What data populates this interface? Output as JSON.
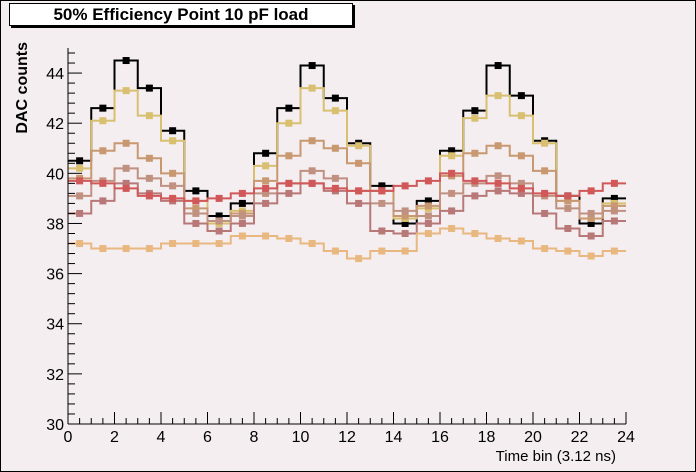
{
  "chart_data": {
    "type": "line",
    "title": "50% Efficiency Point 10 pF load",
    "xlabel": "Time bin (3.12 ns)",
    "ylabel": "DAC counts",
    "xlim": [
      0,
      24
    ],
    "ylim": [
      30,
      45
    ],
    "x_ticks": [
      0,
      2,
      4,
      6,
      8,
      10,
      12,
      14,
      16,
      18,
      20,
      22,
      24
    ],
    "y_ticks": [
      30,
      32,
      34,
      36,
      38,
      40,
      42,
      44
    ],
    "grid": false,
    "legend": "none",
    "x": [
      0.5,
      1.5,
      2.5,
      3.5,
      4.5,
      5.5,
      6.5,
      7.5,
      8.5,
      9.5,
      10.5,
      11.5,
      12.5,
      13.5,
      14.5,
      15.5,
      16.5,
      17.5,
      18.5,
      19.5,
      20.5,
      21.5,
      22.5,
      23.5
    ],
    "series": [
      {
        "color": "#000000",
        "values": [
          40.5,
          42.6,
          44.5,
          43.4,
          41.7,
          39.3,
          38.3,
          38.8,
          40.8,
          42.6,
          44.3,
          43.0,
          41.2,
          39.5,
          38.0,
          38.9,
          40.9,
          42.5,
          44.3,
          43.1,
          41.3,
          39.1,
          38.0,
          39.0
        ]
      },
      {
        "color": "#d8c070",
        "values": [
          40.2,
          42.1,
          43.3,
          42.3,
          41.3,
          38.9,
          38.0,
          38.5,
          40.3,
          42.0,
          43.4,
          42.5,
          41.1,
          39.3,
          38.2,
          38.6,
          40.7,
          42.2,
          43.1,
          42.3,
          41.2,
          38.9,
          38.2,
          38.8
        ]
      },
      {
        "color": "#c89870",
        "values": [
          39.8,
          40.9,
          41.2,
          40.6,
          40.0,
          38.6,
          38.1,
          38.4,
          39.7,
          40.7,
          41.3,
          41.0,
          40.4,
          39.3,
          38.3,
          38.7,
          39.9,
          40.8,
          41.1,
          40.7,
          40.1,
          38.9,
          38.2,
          38.7
        ]
      },
      {
        "color": "#c09080",
        "values": [
          39.1,
          39.7,
          40.2,
          39.8,
          39.5,
          38.4,
          38.1,
          38.3,
          39.2,
          39.6,
          40.1,
          39.8,
          39.3,
          38.8,
          38.5,
          38.3,
          39.2,
          39.6,
          39.9,
          39.6,
          39.1,
          38.6,
          38.4,
          38.5
        ]
      },
      {
        "color": "#b87878",
        "values": [
          38.4,
          38.9,
          39.6,
          39.2,
          38.9,
          38.0,
          37.7,
          38.0,
          38.8,
          39.2,
          39.6,
          39.3,
          38.8,
          37.7,
          37.6,
          38.0,
          38.5,
          39.1,
          39.3,
          39.2,
          38.4,
          37.8,
          37.5,
          38.1
        ]
      },
      {
        "color": "#d05858",
        "values": [
          39.7,
          39.6,
          39.4,
          39.1,
          39.0,
          38.9,
          39.0,
          39.2,
          39.4,
          39.6,
          39.6,
          39.4,
          39.3,
          39.3,
          39.5,
          39.7,
          40.0,
          39.7,
          39.6,
          39.4,
          39.2,
          39.1,
          39.3,
          39.6
        ]
      },
      {
        "color": "#e8b880",
        "values": [
          37.2,
          37.0,
          37.0,
          37.0,
          37.2,
          37.2,
          37.2,
          37.5,
          37.5,
          37.4,
          37.2,
          36.9,
          36.6,
          36.9,
          36.9,
          37.6,
          37.8,
          37.6,
          37.4,
          37.3,
          37.0,
          36.9,
          36.7,
          36.9
        ]
      }
    ]
  }
}
